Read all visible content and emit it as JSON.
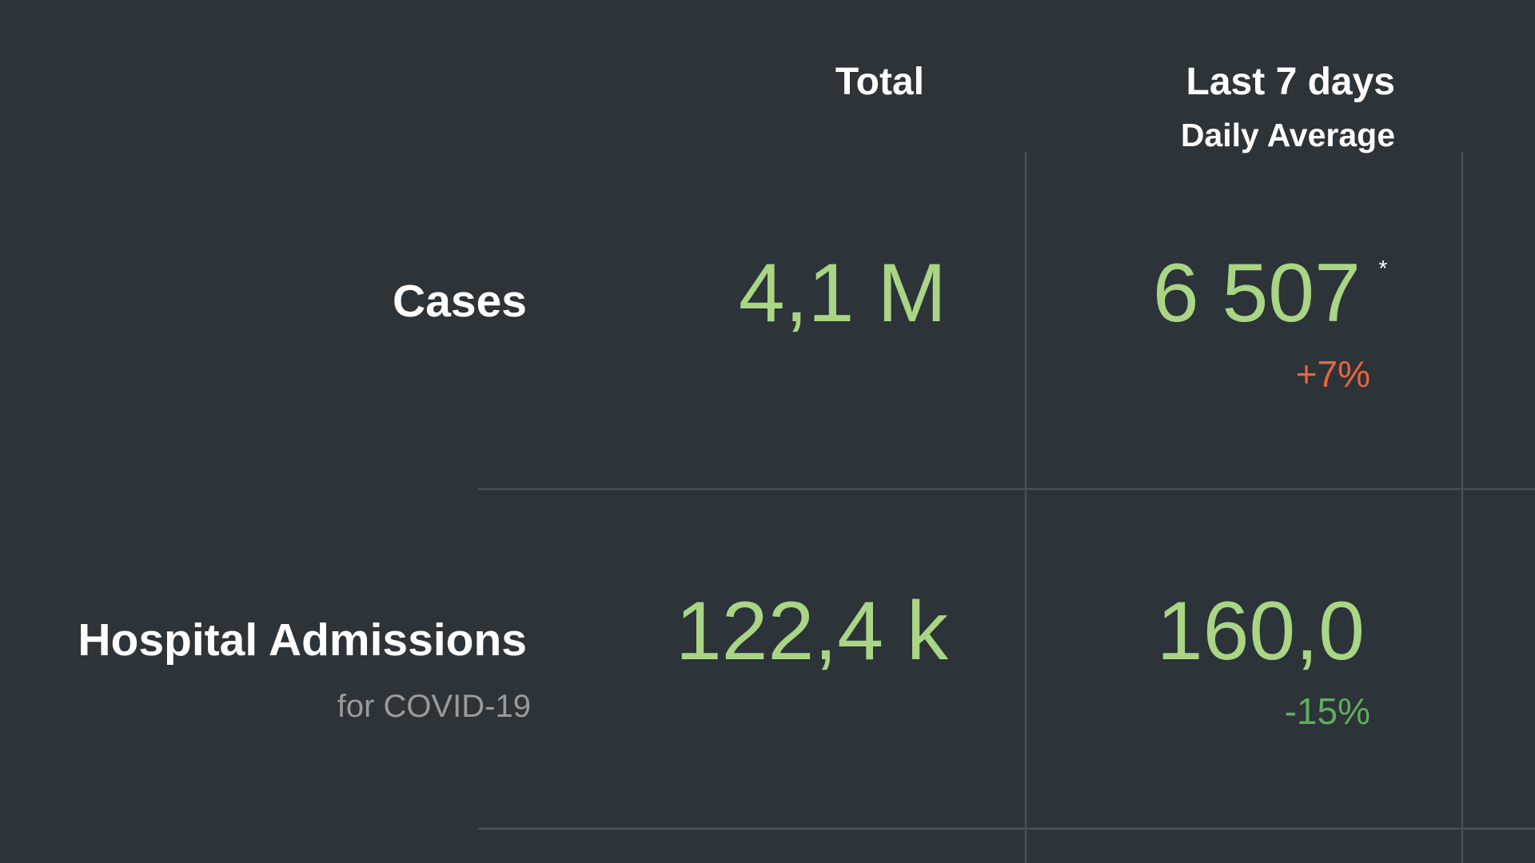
{
  "header": {
    "columns": [
      "Total",
      "Last 7 days"
    ],
    "subtitle": "Daily Average"
  },
  "rows": [
    {
      "label": "Cases",
      "total": "4,1 M",
      "average": "6 507",
      "note": "*",
      "change": "+7%"
    },
    {
      "label": "Hospital Admissions",
      "sublabel": "for COVID-19",
      "total": "122,4 k",
      "average": "160,0",
      "change": "-15%"
    }
  ]
}
